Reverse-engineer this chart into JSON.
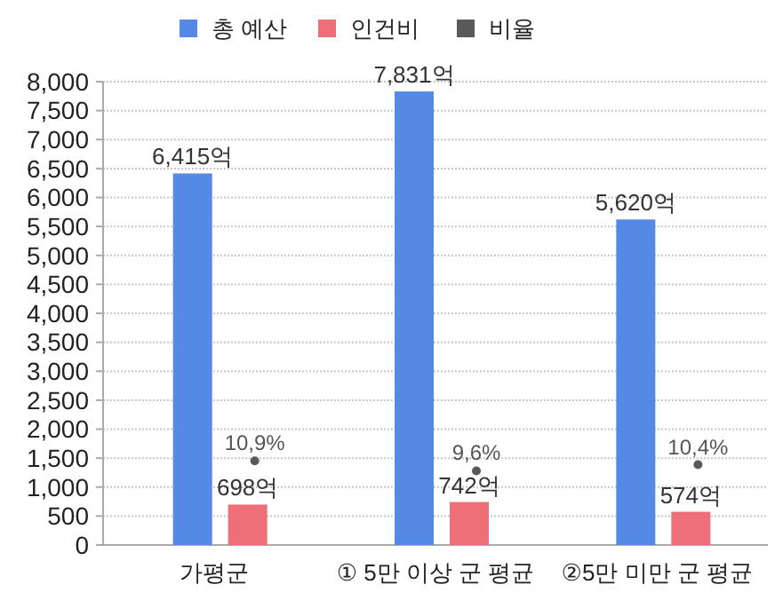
{
  "chart_data": {
    "type": "bar",
    "categories": [
      "가평군",
      "① 5만 이상 군 평균",
      "②5만 미만 군 평균"
    ],
    "series": [
      {
        "name": "총 예산",
        "color": "#5589e6",
        "values": [
          6415,
          7831,
          5620
        ],
        "value_labels": [
          "6,415억",
          "7,831억",
          "5,620억"
        ]
      },
      {
        "name": "인건비",
        "color": "#ef6f78",
        "values": [
          698,
          742,
          574
        ],
        "value_labels": [
          "698억",
          "742억",
          "574억"
        ]
      },
      {
        "name": "비율",
        "type": "scatter",
        "axis": "y2",
        "color": "#595959",
        "values": [
          10.9,
          9.6,
          10.4
        ],
        "value_labels": [
          "10,9%",
          "9,6%",
          "10,4%"
        ]
      }
    ],
    "ylim": [
      0,
      8000
    ],
    "yticks": [
      {
        "value": 0,
        "label": "0"
      },
      {
        "value": 500,
        "label": "500"
      },
      {
        "value": 1000,
        "label": "1,000"
      },
      {
        "value": 1500,
        "label": "1,500"
      },
      {
        "value": 2000,
        "label": "2,000"
      },
      {
        "value": 2500,
        "label": "2,500"
      },
      {
        "value": 3000,
        "label": "3,000"
      },
      {
        "value": 3500,
        "label": "3,500"
      },
      {
        "value": 4000,
        "label": "4,000"
      },
      {
        "value": 4500,
        "label": "4,500"
      },
      {
        "value": 5000,
        "label": "5,000"
      },
      {
        "value": 5500,
        "label": "5,500"
      },
      {
        "value": 6000,
        "label": "6,000"
      },
      {
        "value": 6500,
        "label": "6,500"
      },
      {
        "value": 7000,
        "label": "7,000"
      },
      {
        "value": 7500,
        "label": "7,500"
      },
      {
        "value": 8000,
        "label": "8,000"
      }
    ],
    "y2lim": [
      0,
      60
    ],
    "grid": "y",
    "legend": "top",
    "marker": "circle"
  }
}
